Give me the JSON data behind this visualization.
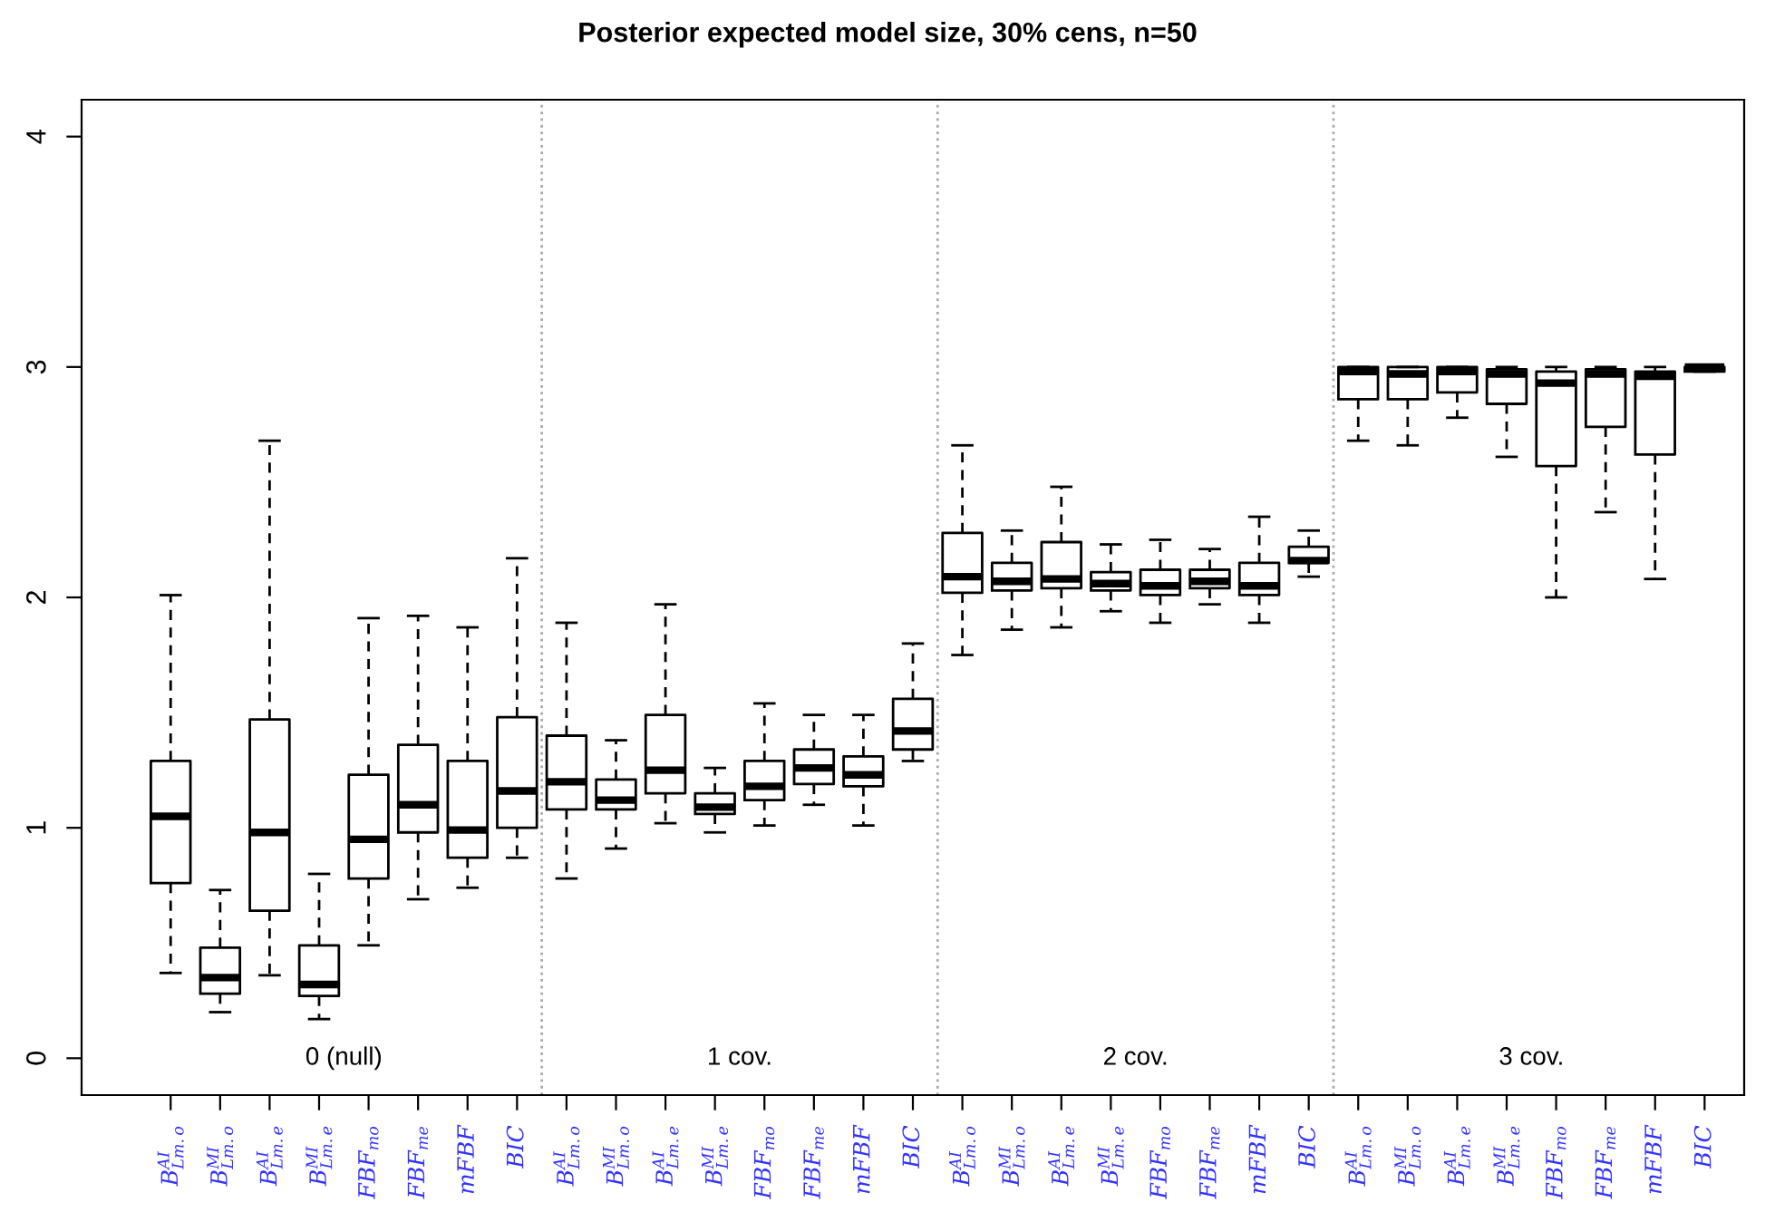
{
  "chart_data": {
    "type": "box",
    "title": "Posterior expected model size, 30% cens, n=50",
    "categories": [
      "B$^{AI}$$_{Lm.o}$",
      "B$^{MI}$$_{Lm.o}$",
      "B$^{AI}$$_{Lm.e}$",
      "B$^{MI}$$_{Lm.e}$",
      "FBF$_{mo}$",
      "FBF$_{me}$",
      "mFBF",
      "BIC",
      "B$^{AI}$$_{Lm.o}$",
      "B$^{MI}$$_{Lm.o}$",
      "B$^{AI}$$_{Lm.e}$",
      "B$^{MI}$$_{Lm.e}$",
      "FBF$_{mo}$",
      "FBF$_{me}$",
      "mFBF",
      "BIC",
      "B$^{AI}$$_{Lm.o}$",
      "B$^{MI}$$_{Lm.o}$",
      "B$^{AI}$$_{Lm.e}$",
      "B$^{MI}$$_{Lm.e}$",
      "FBF$_{mo}$",
      "FBF$_{me}$",
      "mFBF",
      "BIC",
      "B$^{AI}$$_{Lm.o}$",
      "B$^{MI}$$_{Lm.o}$",
      "B$^{AI}$$_{Lm.e}$",
      "B$^{MI}$$_{Lm.e}$",
      "FBF$_{mo}$",
      "FBF$_{me}$",
      "mFBF",
      "BIC"
    ],
    "ylim": [
      -0.16,
      4.16
    ],
    "yticks": [
      0,
      1,
      2,
      3,
      4
    ],
    "boxes": [
      {
        "low": 0.37,
        "q1": 0.76,
        "median": 1.05,
        "q3": 1.29,
        "high": 2.01
      },
      {
        "low": 0.2,
        "q1": 0.28,
        "median": 0.35,
        "q3": 0.48,
        "high": 0.73
      },
      {
        "low": 0.36,
        "q1": 0.64,
        "median": 0.98,
        "q3": 1.47,
        "high": 2.68
      },
      {
        "low": 0.17,
        "q1": 0.27,
        "median": 0.32,
        "q3": 0.49,
        "high": 0.8
      },
      {
        "low": 0.49,
        "q1": 0.78,
        "median": 0.95,
        "q3": 1.23,
        "high": 1.91
      },
      {
        "low": 0.69,
        "q1": 0.98,
        "median": 1.1,
        "q3": 1.36,
        "high": 1.92
      },
      {
        "low": 0.74,
        "q1": 0.87,
        "median": 0.99,
        "q3": 1.29,
        "high": 1.87
      },
      {
        "low": 0.87,
        "q1": 1.0,
        "median": 1.16,
        "q3": 1.48,
        "high": 2.17
      },
      {
        "low": 0.78,
        "q1": 1.08,
        "median": 1.2,
        "q3": 1.4,
        "high": 1.89
      },
      {
        "low": 0.91,
        "q1": 1.08,
        "median": 1.12,
        "q3": 1.21,
        "high": 1.38
      },
      {
        "low": 1.02,
        "q1": 1.15,
        "median": 1.25,
        "q3": 1.49,
        "high": 1.97
      },
      {
        "low": 0.98,
        "q1": 1.06,
        "median": 1.09,
        "q3": 1.15,
        "high": 1.26
      },
      {
        "low": 1.01,
        "q1": 1.12,
        "median": 1.18,
        "q3": 1.29,
        "high": 1.54
      },
      {
        "low": 1.1,
        "q1": 1.19,
        "median": 1.26,
        "q3": 1.34,
        "high": 1.49
      },
      {
        "low": 1.01,
        "q1": 1.18,
        "median": 1.23,
        "q3": 1.31,
        "high": 1.49
      },
      {
        "low": 1.29,
        "q1": 1.34,
        "median": 1.42,
        "q3": 1.56,
        "high": 1.8
      },
      {
        "low": 1.75,
        "q1": 2.02,
        "median": 2.09,
        "q3": 2.28,
        "high": 2.66
      },
      {
        "low": 1.86,
        "q1": 2.03,
        "median": 2.07,
        "q3": 2.15,
        "high": 2.29
      },
      {
        "low": 1.87,
        "q1": 2.04,
        "median": 2.08,
        "q3": 2.24,
        "high": 2.48
      },
      {
        "low": 1.94,
        "q1": 2.03,
        "median": 2.06,
        "q3": 2.11,
        "high": 2.23
      },
      {
        "low": 1.89,
        "q1": 2.01,
        "median": 2.05,
        "q3": 2.12,
        "high": 2.25
      },
      {
        "low": 1.97,
        "q1": 2.04,
        "median": 2.07,
        "q3": 2.12,
        "high": 2.21
      },
      {
        "low": 1.89,
        "q1": 2.01,
        "median": 2.05,
        "q3": 2.15,
        "high": 2.35
      },
      {
        "low": 2.09,
        "q1": 2.15,
        "median": 2.16,
        "q3": 2.22,
        "high": 2.29
      },
      {
        "low": 2.68,
        "q1": 2.86,
        "median": 2.98,
        "q3": 3.0,
        "high": 3.0
      },
      {
        "low": 2.66,
        "q1": 2.86,
        "median": 2.97,
        "q3": 3.0,
        "high": 3.0
      },
      {
        "low": 2.78,
        "q1": 2.89,
        "median": 2.98,
        "q3": 3.0,
        "high": 3.0
      },
      {
        "low": 2.61,
        "q1": 2.84,
        "median": 2.97,
        "q3": 2.99,
        "high": 3.0
      },
      {
        "low": 2.0,
        "q1": 2.57,
        "median": 2.93,
        "q3": 2.98,
        "high": 3.0
      },
      {
        "low": 2.37,
        "q1": 2.74,
        "median": 2.97,
        "q3": 2.99,
        "high": 3.0
      },
      {
        "low": 2.08,
        "q1": 2.62,
        "median": 2.96,
        "q3": 2.98,
        "high": 3.0
      },
      {
        "low": 2.98,
        "q1": 2.98,
        "median": 3.0,
        "q3": 3.0,
        "high": 3.0
      }
    ],
    "annotations": [
      "0 (null)",
      "1 cov.",
      "2 cov.",
      "3 cov."
    ]
  }
}
